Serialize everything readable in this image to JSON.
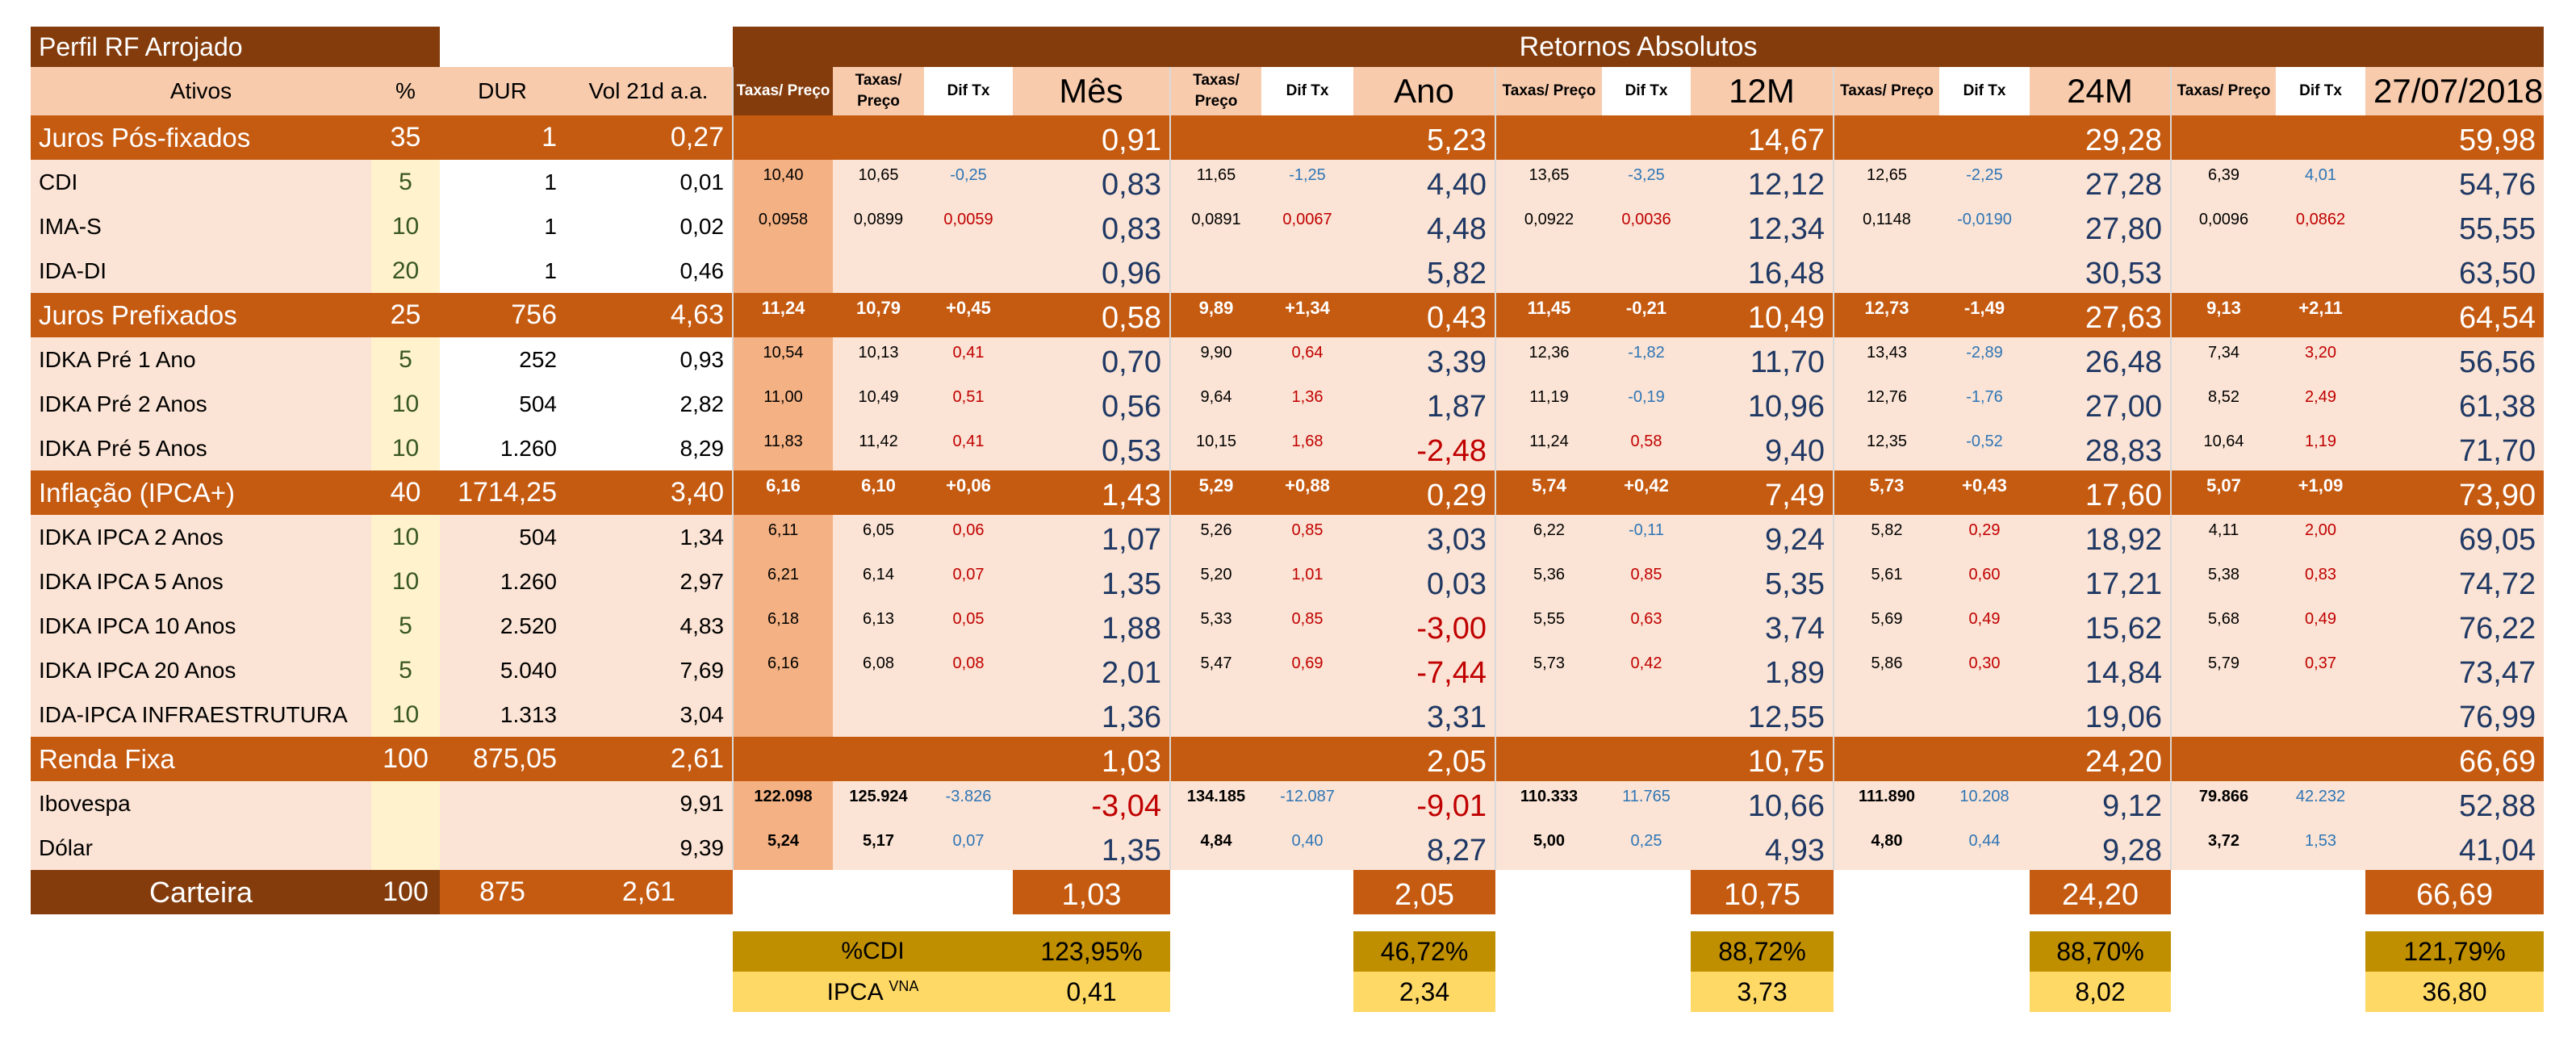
{
  "header": {
    "title": "Perfil RF Arrojado",
    "band_title": "Retornos Absolutos",
    "ativos": "Ativos",
    "pct": "%",
    "dur": "DUR",
    "vol": "Vol 21d a.a.",
    "taxas_preco": "Taxas/ Preço",
    "taxas_line1": "Taxas/",
    "taxas_line2": "Preço",
    "dif_tx": "Dif Tx",
    "periods": [
      "Mês",
      "Ano",
      "12M",
      "24M",
      "27/07/2018"
    ]
  },
  "colors": {
    "brown": "#843C0C",
    "orange": "#C55A11",
    "navy": "#1F3864",
    "red": "#C00000",
    "blue": "#2E75B6",
    "gold": "#BF8F00",
    "yellow": "#FFD966"
  },
  "rows": [
    {
      "type": "group",
      "name": "Juros Pós-fixados",
      "pct": "35",
      "dur": "1",
      "vol": "0,27",
      "t1": "",
      "periods": [
        {
          "taxa": "",
          "dif": "",
          "ret": "0,91"
        },
        {
          "taxa": "",
          "dif": "",
          "ret": "5,23"
        },
        {
          "taxa": "",
          "dif": "",
          "ret": "14,67"
        },
        {
          "taxa": "",
          "dif": "",
          "ret": "29,28"
        },
        {
          "taxa": "",
          "dif": "",
          "ret": "59,98"
        }
      ]
    },
    {
      "type": "item",
      "white": true,
      "dif_tone": "blue",
      "name": "CDI",
      "pct": "5",
      "dur": "1",
      "vol": "0,01",
      "t1": "10,40",
      "periods": [
        {
          "taxa": "10,65",
          "dif": "-0,25",
          "ret": "0,83"
        },
        {
          "taxa": "11,65",
          "dif": "-1,25",
          "ret": "4,40"
        },
        {
          "taxa": "13,65",
          "dif": "-3,25",
          "ret": "12,12"
        },
        {
          "taxa": "12,65",
          "dif": "-2,25",
          "ret": "27,28"
        },
        {
          "taxa": "6,39",
          "dif": "4,01",
          "ret": "54,76"
        }
      ]
    },
    {
      "type": "item",
      "white": true,
      "name": "IMA-S",
      "pct": "10",
      "dur": "1",
      "vol": "0,02",
      "t1": "0,0958",
      "periods": [
        {
          "taxa": "0,0899",
          "dif": "0,0059",
          "ret": "0,83"
        },
        {
          "taxa": "0,0891",
          "dif": "0,0067",
          "ret": "4,48"
        },
        {
          "taxa": "0,0922",
          "dif": "0,0036",
          "ret": "12,34"
        },
        {
          "taxa": "0,1148",
          "dif": "-0,0190",
          "ret": "27,80"
        },
        {
          "taxa": "0,0096",
          "dif": "0,0862",
          "ret": "55,55"
        }
      ]
    },
    {
      "type": "item",
      "white": true,
      "name": "IDA-DI",
      "pct": "20",
      "dur": "1",
      "vol": "0,46",
      "t1": "",
      "periods": [
        {
          "taxa": "",
          "dif": "",
          "ret": "0,96"
        },
        {
          "taxa": "",
          "dif": "",
          "ret": "5,82"
        },
        {
          "taxa": "",
          "dif": "",
          "ret": "16,48"
        },
        {
          "taxa": "",
          "dif": "",
          "ret": "30,53"
        },
        {
          "taxa": "",
          "dif": "",
          "ret": "63,50"
        }
      ]
    },
    {
      "type": "group",
      "name": "Juros Prefixados",
      "pct": "25",
      "dur": "756",
      "vol": "4,63",
      "t1": "11,24",
      "periods": [
        {
          "taxa": "10,79",
          "dif": "+0,45",
          "ret": "0,58"
        },
        {
          "taxa": "9,89",
          "dif": "+1,34",
          "ret": "0,43"
        },
        {
          "taxa": "11,45",
          "dif": "-0,21",
          "ret": "10,49"
        },
        {
          "taxa": "12,73",
          "dif": "-1,49",
          "ret": "27,63"
        },
        {
          "taxa": "9,13",
          "dif": "+2,11",
          "ret": "64,54"
        }
      ]
    },
    {
      "type": "item",
      "white": true,
      "name": "IDKA Pré 1 Ano",
      "pct": "5",
      "dur": "252",
      "vol": "0,93",
      "t1": "10,54",
      "periods": [
        {
          "taxa": "10,13",
          "dif": "0,41",
          "ret": "0,70"
        },
        {
          "taxa": "9,90",
          "dif": "0,64",
          "ret": "3,39"
        },
        {
          "taxa": "12,36",
          "dif": "-1,82",
          "ret": "11,70"
        },
        {
          "taxa": "13,43",
          "dif": "-2,89",
          "ret": "26,48"
        },
        {
          "taxa": "7,34",
          "dif": "3,20",
          "ret": "56,56"
        }
      ]
    },
    {
      "type": "item",
      "white": true,
      "name": "IDKA Pré 2 Anos",
      "pct": "10",
      "dur": "504",
      "vol": "2,82",
      "t1": "11,00",
      "periods": [
        {
          "taxa": "10,49",
          "dif": "0,51",
          "ret": "0,56"
        },
        {
          "taxa": "9,64",
          "dif": "1,36",
          "ret": "1,87"
        },
        {
          "taxa": "11,19",
          "dif": "-0,19",
          "ret": "10,96"
        },
        {
          "taxa": "12,76",
          "dif": "-1,76",
          "ret": "27,00"
        },
        {
          "taxa": "8,52",
          "dif": "2,49",
          "ret": "61,38"
        }
      ]
    },
    {
      "type": "item",
      "white": true,
      "name": "IDKA Pré 5 Anos",
      "pct": "10",
      "dur": "1.260",
      "vol": "8,29",
      "t1": "11,83",
      "periods": [
        {
          "taxa": "11,42",
          "dif": "0,41",
          "ret": "0,53"
        },
        {
          "taxa": "10,15",
          "dif": "1,68",
          "ret": "-2,48"
        },
        {
          "taxa": "11,24",
          "dif": "0,58",
          "ret": "9,40"
        },
        {
          "taxa": "12,35",
          "dif": "-0,52",
          "ret": "28,83"
        },
        {
          "taxa": "10,64",
          "dif": "1,19",
          "ret": "71,70"
        }
      ]
    },
    {
      "type": "group",
      "name": "Inflação (IPCA+)",
      "pct": "40",
      "dur": "1714,25",
      "vol": "3,40",
      "t1": "6,16",
      "periods": [
        {
          "taxa": "6,10",
          "dif": "+0,06",
          "ret": "1,43"
        },
        {
          "taxa": "5,29",
          "dif": "+0,88",
          "ret": "0,29"
        },
        {
          "taxa": "5,74",
          "dif": "+0,42",
          "ret": "7,49"
        },
        {
          "taxa": "5,73",
          "dif": "+0,43",
          "ret": "17,60"
        },
        {
          "taxa": "5,07",
          "dif": "+1,09",
          "ret": "73,90"
        }
      ]
    },
    {
      "type": "item",
      "name": "IDKA IPCA 2 Anos",
      "pct": "10",
      "dur": "504",
      "vol": "1,34",
      "t1": "6,11",
      "periods": [
        {
          "taxa": "6,05",
          "dif": "0,06",
          "ret": "1,07"
        },
        {
          "taxa": "5,26",
          "dif": "0,85",
          "ret": "3,03"
        },
        {
          "taxa": "6,22",
          "dif": "-0,11",
          "ret": "9,24"
        },
        {
          "taxa": "5,82",
          "dif": "0,29",
          "ret": "18,92"
        },
        {
          "taxa": "4,11",
          "dif": "2,00",
          "ret": "69,05"
        }
      ]
    },
    {
      "type": "item",
      "name": "IDKA IPCA 5 Anos",
      "pct": "10",
      "dur": "1.260",
      "vol": "2,97",
      "t1": "6,21",
      "periods": [
        {
          "taxa": "6,14",
          "dif": "0,07",
          "ret": "1,35"
        },
        {
          "taxa": "5,20",
          "dif": "1,01",
          "ret": "0,03"
        },
        {
          "taxa": "5,36",
          "dif": "0,85",
          "ret": "5,35"
        },
        {
          "taxa": "5,61",
          "dif": "0,60",
          "ret": "17,21"
        },
        {
          "taxa": "5,38",
          "dif": "0,83",
          "ret": "74,72"
        }
      ]
    },
    {
      "type": "item",
      "name": "IDKA IPCA 10 Anos",
      "pct": "5",
      "dur": "2.520",
      "vol": "4,83",
      "t1": "6,18",
      "periods": [
        {
          "taxa": "6,13",
          "dif": "0,05",
          "ret": "1,88"
        },
        {
          "taxa": "5,33",
          "dif": "0,85",
          "ret": "-3,00"
        },
        {
          "taxa": "5,55",
          "dif": "0,63",
          "ret": "3,74"
        },
        {
          "taxa": "5,69",
          "dif": "0,49",
          "ret": "15,62"
        },
        {
          "taxa": "5,68",
          "dif": "0,49",
          "ret": "76,22"
        }
      ]
    },
    {
      "type": "item",
      "name": "IDKA IPCA 20 Anos",
      "pct": "5",
      "dur": "5.040",
      "vol": "7,69",
      "t1": "6,16",
      "periods": [
        {
          "taxa": "6,08",
          "dif": "0,08",
          "ret": "2,01"
        },
        {
          "taxa": "5,47",
          "dif": "0,69",
          "ret": "-7,44"
        },
        {
          "taxa": "5,73",
          "dif": "0,42",
          "ret": "1,89"
        },
        {
          "taxa": "5,86",
          "dif": "0,30",
          "ret": "14,84"
        },
        {
          "taxa": "5,79",
          "dif": "0,37",
          "ret": "73,47"
        }
      ]
    },
    {
      "type": "item",
      "name": "IDA-IPCA INFRAESTRUTURA",
      "pct": "10",
      "dur": "1.313",
      "vol": "3,04",
      "t1": "",
      "periods": [
        {
          "taxa": "",
          "dif": "",
          "ret": "1,36"
        },
        {
          "taxa": "",
          "dif": "",
          "ret": "3,31"
        },
        {
          "taxa": "",
          "dif": "",
          "ret": "12,55"
        },
        {
          "taxa": "",
          "dif": "",
          "ret": "19,06"
        },
        {
          "taxa": "",
          "dif": "",
          "ret": "76,99"
        }
      ]
    },
    {
      "type": "group",
      "name": "Renda Fixa",
      "pct": "100",
      "dur": "875,05",
      "vol": "2,61",
      "t1": "",
      "periods": [
        {
          "taxa": "",
          "dif": "",
          "ret": "1,03"
        },
        {
          "taxa": "",
          "dif": "",
          "ret": "2,05"
        },
        {
          "taxa": "",
          "dif": "",
          "ret": "10,75"
        },
        {
          "taxa": "",
          "dif": "",
          "ret": "24,20"
        },
        {
          "taxa": "",
          "dif": "",
          "ret": "66,69"
        }
      ]
    },
    {
      "type": "market",
      "dif_tone": "blue",
      "name": "Ibovespa",
      "pct": "",
      "dur": "",
      "vol": "9,91",
      "t1": "122.098",
      "periods": [
        {
          "taxa": "125.924",
          "dif": "-3.826",
          "ret": "-3,04"
        },
        {
          "taxa": "134.185",
          "dif": "-12.087",
          "ret": "-9,01"
        },
        {
          "taxa": "110.333",
          "dif": "11.765",
          "ret": "10,66"
        },
        {
          "taxa": "111.890",
          "dif": "10.208",
          "ret": "9,12"
        },
        {
          "taxa": "79.866",
          "dif": "42.232",
          "ret": "52,88"
        }
      ]
    },
    {
      "type": "market",
      "dif_tone": "blue",
      "name": "Dólar",
      "pct": "",
      "dur": "",
      "vol": "9,39",
      "t1": "5,24",
      "periods": [
        {
          "taxa": "5,17",
          "dif": "0,07",
          "ret": "1,35"
        },
        {
          "taxa": "4,84",
          "dif": "0,40",
          "ret": "8,27"
        },
        {
          "taxa": "5,00",
          "dif": "0,25",
          "ret": "4,93"
        },
        {
          "taxa": "4,80",
          "dif": "0,44",
          "ret": "9,28"
        },
        {
          "taxa": "3,72",
          "dif": "1,53",
          "ret": "41,04"
        }
      ]
    }
  ],
  "carteira": {
    "name": "Carteira",
    "pct": "100",
    "dur": "875",
    "vol": "2,61",
    "rets": [
      "1,03",
      "2,05",
      "10,75",
      "24,20",
      "66,69"
    ]
  },
  "cdi": {
    "label": "%CDI",
    "values": [
      "123,95%",
      "46,72%",
      "88,72%",
      "88,70%",
      "121,79%"
    ]
  },
  "ipca": {
    "label": "IPCA",
    "sup": "VNA",
    "values": [
      "0,41",
      "2,34",
      "3,73",
      "8,02",
      "36,80"
    ]
  }
}
